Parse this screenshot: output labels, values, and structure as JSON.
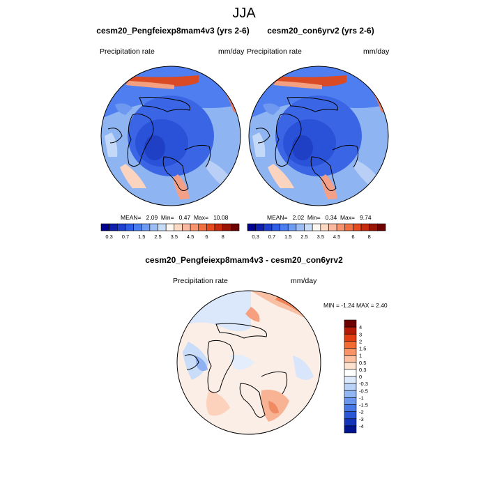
{
  "page_title": "JJA",
  "panels": [
    {
      "title": "cesm20_Pengfeiexp8mam4v3 (yrs 2-6)",
      "left_label": "Precipitation rate",
      "right_label": "mm/day",
      "stats": {
        "mean_label": "MEAN=",
        "mean": "2.09",
        "min_label": "Min=",
        "min": "0.47",
        "max_label": "Max=",
        "max": "10.08"
      }
    },
    {
      "title": "cesm20_con6yrv2 (yrs 2-6)",
      "left_label": "Precipitation rate",
      "right_label": "mm/day",
      "stats": {
        "mean_label": "MEAN=",
        "mean": "2.02",
        "min_label": "Min=",
        "min": "0.34",
        "max_label": "Max=",
        "max": "9.74"
      }
    },
    {
      "title": "cesm20_Pengfeiexp8mam4v3 - cesm20_con6yrv2",
      "left_label": "Precipitation rate",
      "right_label": "mm/day",
      "stats": {
        "text": "MIN =  -1.24 MAX =   2.40"
      }
    }
  ],
  "colorbar_abs": {
    "colors": [
      "#00008f",
      "#0f1fb0",
      "#1e3fd0",
      "#2e5ee8",
      "#4a7df0",
      "#6d9bf4",
      "#9bbcf5",
      "#c6dbf8",
      "#fef7f0",
      "#fdd9c4",
      "#fbb8a0",
      "#f7946e",
      "#f2703f",
      "#e64a1d",
      "#c82a0c",
      "#9a1404",
      "#6e0000"
    ],
    "tick_labels": [
      "0.3",
      "0.7",
      "1.5",
      "2.5",
      "3.5",
      "4.5",
      "6",
      "8"
    ]
  },
  "colorbar_diff": {
    "colors": [
      "#6e0000",
      "#b51a05",
      "#e23e12",
      "#f46a31",
      "#fa9466",
      "#fcc0a0",
      "#fde1cf",
      "#ffffff",
      "#dbe9fb",
      "#b9d2f8",
      "#92b5f3",
      "#6b96ee",
      "#4877e6",
      "#2a57d6",
      "#1334b8",
      "#00148f"
    ],
    "tick_labels": [
      "4",
      "3",
      "2",
      "1.5",
      "1",
      "0.5",
      "0.3",
      "0",
      "-0.3",
      "-0.5",
      "-1",
      "-1.5",
      "-2",
      "-3",
      "-4"
    ]
  },
  "chart_data": [
    {
      "type": "heatmap",
      "title": "cesm20_Pengfeiexp8mam4v3 (yrs 2-6)",
      "season": "JJA",
      "variable": "Precipitation rate",
      "units": "mm/day",
      "projection": "north polar stereographic",
      "levels": [
        0.3,
        0.5,
        0.7,
        1,
        1.5,
        2,
        2.5,
        3,
        3.5,
        4,
        4.5,
        5,
        6,
        7,
        8,
        9
      ],
      "mean": 2.09,
      "min": 0.47,
      "max": 10.08
    },
    {
      "type": "heatmap",
      "title": "cesm20_con6yrv2 (yrs 2-6)",
      "season": "JJA",
      "variable": "Precipitation rate",
      "units": "mm/day",
      "projection": "north polar stereographic",
      "levels": [
        0.3,
        0.5,
        0.7,
        1,
        1.5,
        2,
        2.5,
        3,
        3.5,
        4,
        4.5,
        5,
        6,
        7,
        8,
        9
      ],
      "mean": 2.02,
      "min": 0.34,
      "max": 9.74
    },
    {
      "type": "heatmap",
      "title": "cesm20_Pengfeiexp8mam4v3 - cesm20_con6yrv2",
      "season": "JJA",
      "variable": "Precipitation rate",
      "units": "mm/day",
      "projection": "north polar stereographic",
      "levels": [
        -4,
        -3,
        -2,
        -1.5,
        -1,
        -0.5,
        -0.3,
        0,
        0.3,
        0.5,
        1,
        1.5,
        2,
        3,
        4
      ],
      "min": -1.24,
      "max": 2.4
    }
  ]
}
